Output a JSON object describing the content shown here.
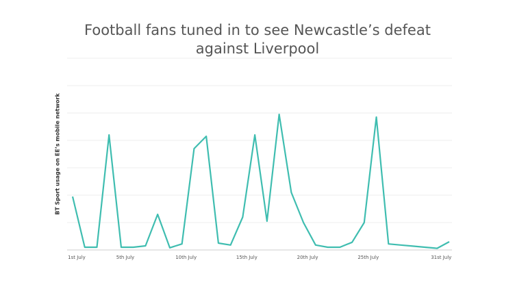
{
  "chart_data": {
    "type": "line",
    "title": [
      "Football fans tuned in to see Newcastle’s defeat",
      "against Liverpool"
    ],
    "y_label": "BT Sport usage on EE’s mobile network",
    "categories": [
      "1st July",
      null,
      null,
      null,
      "5th July",
      null,
      null,
      null,
      null,
      "10th July",
      null,
      null,
      null,
      null,
      "15th July",
      null,
      null,
      null,
      null,
      "20th July",
      null,
      null,
      null,
      null,
      "25th July",
      null,
      null,
      null,
      null,
      null,
      "31st July",
      null
    ],
    "values": [
      1.95,
      0.1,
      0.1,
      4.2,
      0.1,
      0.1,
      0.15,
      1.3,
      0.08,
      0.22,
      3.7,
      4.15,
      0.25,
      0.18,
      1.2,
      4.2,
      1.05,
      4.95,
      2.1,
      1.0,
      0.18,
      0.1,
      0.1,
      0.28,
      1.0,
      4.85,
      0.22,
      0.18,
      0.14,
      0.1,
      0.06,
      0.3
    ],
    "color": "#3fbdb0",
    "ylim": [
      0,
      7
    ],
    "ygrid": [
      0,
      1,
      2,
      3,
      4,
      5,
      6,
      7
    ]
  }
}
